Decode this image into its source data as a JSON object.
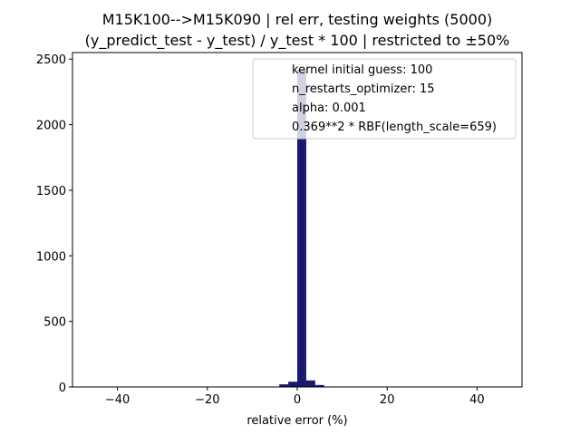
{
  "chart_data": {
    "type": "bar",
    "title": [
      "M15K100-->M15K090 | rel err, testing weights (5000)",
      "(y_predict_test - y_test) / y_test * 100 | restricted to ±50%"
    ],
    "xlabel": "relative error (%)",
    "ylabel": "",
    "xlim": [
      -50,
      50
    ],
    "ylim": [
      0,
      2550
    ],
    "xticks": [
      -40,
      -20,
      0,
      20,
      40
    ],
    "xtick_labels": [
      "−40",
      "−20",
      "0",
      "20",
      "40"
    ],
    "yticks": [
      0,
      500,
      1000,
      1500,
      2000,
      2500
    ],
    "ytick_labels": [
      "0",
      "500",
      "1000",
      "1500",
      "2000",
      "2500"
    ],
    "bar_color": "#191970",
    "bins": [
      {
        "x0": -6,
        "x1": -4,
        "count": 1
      },
      {
        "x0": -4,
        "x1": -2,
        "count": 20
      },
      {
        "x0": -2,
        "x1": 0,
        "count": 40
      },
      {
        "x0": 0,
        "x1": 2,
        "count": 2420
      },
      {
        "x0": 2,
        "x1": 4,
        "count": 50
      },
      {
        "x0": 4,
        "x1": 6,
        "count": 15
      }
    ],
    "legend": {
      "placement": "top-right",
      "lines": [
        "kernel initial guess: 100",
        "n_restarts_optimizer: 15",
        "alpha: 0.001",
        "0.369**2 * RBF(length_scale=659)"
      ]
    },
    "grid": false
  }
}
